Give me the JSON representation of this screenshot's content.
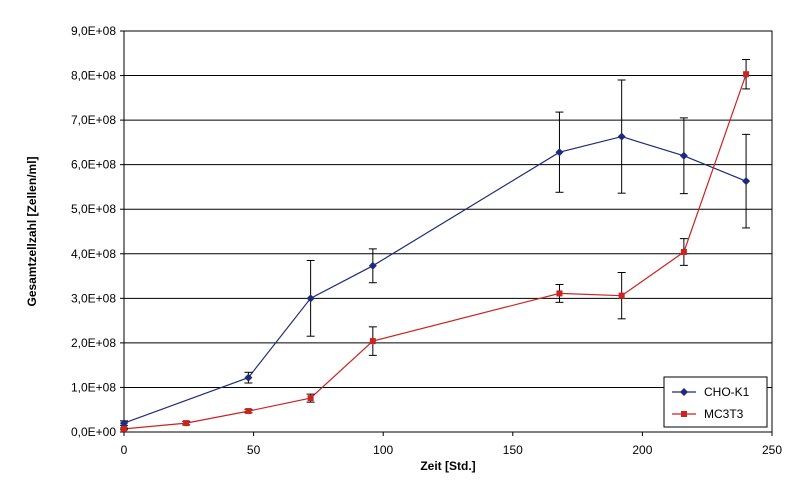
{
  "chart_data": {
    "type": "line",
    "title": "",
    "xlabel": "Zeit [Std.]",
    "ylabel": "Gesamtzellzahl [Zellen/ml]",
    "xlim": [
      0,
      250
    ],
    "ylim": [
      0,
      900000000
    ],
    "x_ticks": [
      0,
      50,
      100,
      150,
      200,
      250
    ],
    "y_ticks": [
      0,
      100000000,
      200000000,
      300000000,
      400000000,
      500000000,
      600000000,
      700000000,
      800000000,
      900000000
    ],
    "y_tick_labels": [
      "0,0E+00",
      "1,0E+08",
      "2,0E+08",
      "3,0E+08",
      "4,0E+08",
      "5,0E+08",
      "6,0E+08",
      "7,0E+08",
      "8,0E+08",
      "9,0E+08"
    ],
    "grid": "horizontal",
    "legend_position": "bottom-right",
    "series": [
      {
        "name": "CHO-K1",
        "color": "#1f2a7a",
        "marker": "diamond",
        "x": [
          0,
          48,
          72,
          96,
          168,
          192,
          216,
          240
        ],
        "y": [
          20000000,
          122000000,
          300000000,
          373000000,
          628000000,
          663000000,
          620000000,
          563000000
        ],
        "err": [
          5000000,
          12000000,
          85000000,
          38000000,
          90000000,
          127000000,
          85000000,
          105000000
        ]
      },
      {
        "name": "MC3T3",
        "color": "#cc2222",
        "marker": "square",
        "x": [
          0,
          24,
          48,
          72,
          96,
          168,
          192,
          216,
          240
        ],
        "y": [
          7000000,
          20000000,
          47000000,
          76000000,
          204000000,
          311000000,
          306000000,
          404000000,
          803000000
        ],
        "err": [
          2000000,
          4000000,
          4000000,
          9000000,
          32000000,
          20000000,
          52000000,
          30000000,
          33000000
        ]
      }
    ]
  }
}
